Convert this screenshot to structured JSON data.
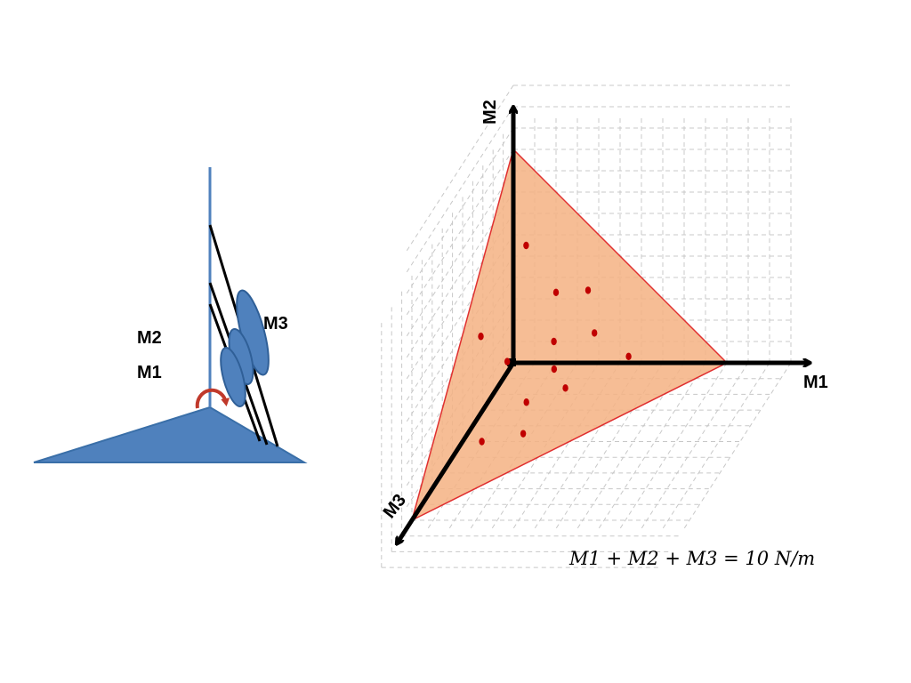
{
  "mechanism": {
    "label_m1": "M1",
    "label_m2": "M2",
    "label_m3": "M3",
    "colors": {
      "body": "#4f81bd",
      "rotation_arrow": "#c0392b",
      "links": "#000000"
    }
  },
  "chart_data": {
    "type": "scatter",
    "axes": {
      "x": "M1",
      "y": "M2",
      "z": "M3"
    },
    "points": [
      {
        "m1": 0.6,
        "m2": 5.5,
        "m3": 0.0
      },
      {
        "m1": 2.0,
        "m2": 3.3,
        "m3": 0.0
      },
      {
        "m1": 3.5,
        "m2": 3.4,
        "m3": 0.0
      },
      {
        "m1": 1.9,
        "m2": 1.0,
        "m3": 0.0
      },
      {
        "m1": 3.8,
        "m2": 1.4,
        "m3": 0.0
      },
      {
        "m1": 5.4,
        "m2": 0.3,
        "m3": 0.0
      },
      {
        "m1": 0.0,
        "m2": 3.6,
        "m3": 3.2
      },
      {
        "m1": 0.0,
        "m2": 0.5,
        "m3": 0.6
      },
      {
        "m1": 2.1,
        "m2": 0.0,
        "m3": 0.4
      },
      {
        "m1": 3.2,
        "m2": 0.0,
        "m3": 1.6
      },
      {
        "m1": 1.8,
        "m2": 0.0,
        "m3": 2.5
      },
      {
        "m1": 2.6,
        "m2": 0.0,
        "m3": 4.5
      },
      {
        "m1": 0.9,
        "m2": 0.0,
        "m3": 5.0
      }
    ],
    "plane_total": 10,
    "grid": true,
    "colors": {
      "plane_fill": "#f4b183",
      "plane_edge": "#e03030",
      "points": "#c00000",
      "grid": "#c8c8c8",
      "axes": "#000000"
    }
  },
  "equation": "M1 + M2 + M3 = 10 N/m"
}
